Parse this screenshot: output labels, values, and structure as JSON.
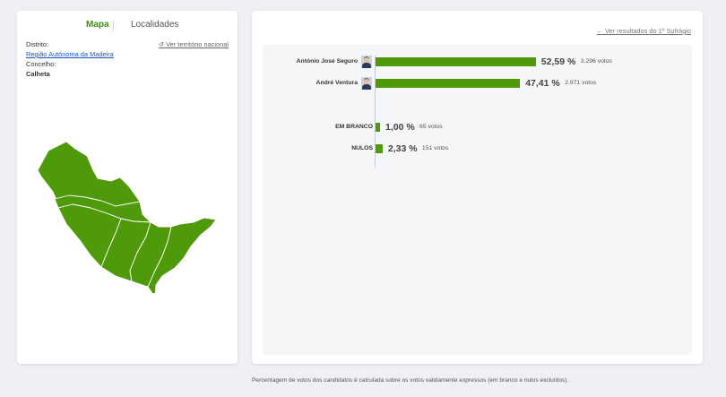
{
  "tabs": {
    "mapa": "Mapa",
    "localidades": "Localidades"
  },
  "location": {
    "distrito_label": "Distrito:",
    "distrito_value": "Região Autónoma da Madeira",
    "concelho_label": "Concelho:",
    "concelho_value": "Calheta",
    "ver_nacional": "Ver território nacional"
  },
  "map": {
    "fill_color": "#4f9a0a",
    "border_color": "#ffffff"
  },
  "results": {
    "ver_primeiro": "Ver resultados do 1º Sufrágio",
    "candidates": [
      {
        "name": "António José Seguro",
        "percent": 52.59,
        "percent_label": "52,59 %",
        "votes_label": "3.296 votos"
      },
      {
        "name": "André Ventura",
        "percent": 47.41,
        "percent_label": "47,41 %",
        "votes_label": "2.971 votos"
      }
    ],
    "others": [
      {
        "name": "EM BRANCO",
        "percent": 1.0,
        "percent_label": "1,00 %",
        "votes_label": "65 votos"
      },
      {
        "name": "NULOS",
        "percent": 2.33,
        "percent_label": "2,33 %",
        "votes_label": "151 votos"
      }
    ]
  },
  "footnote": "Percentagem de votos dos candidatos é calculada sobre os votos validamente expressos (em branco e nulos excluídos)."
}
